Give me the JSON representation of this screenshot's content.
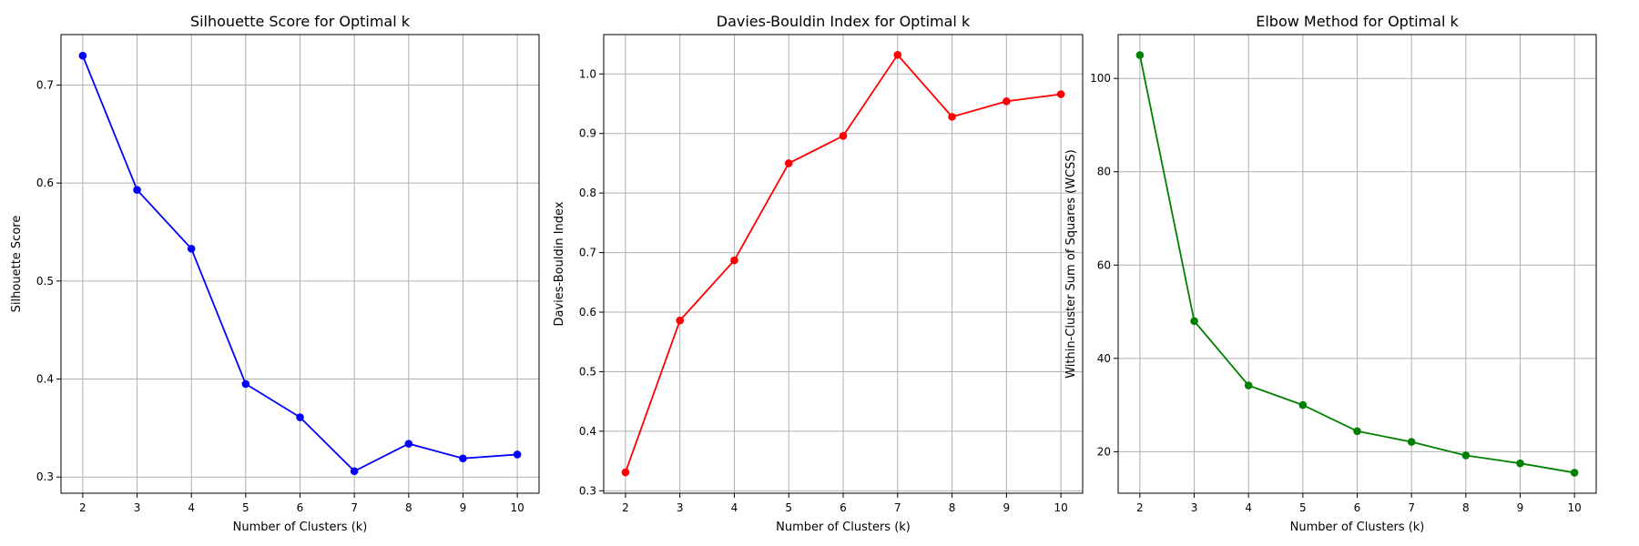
{
  "chart_data": [
    {
      "type": "line",
      "title": "Silhouette Score for Optimal k",
      "xlabel": "Number of Clusters (k)",
      "ylabel": "Silhouette Score",
      "x": [
        2,
        3,
        4,
        5,
        6,
        7,
        8,
        9,
        10
      ],
      "series": [
        {
          "values": [
            0.73,
            0.593,
            0.533,
            0.395,
            0.361,
            0.306,
            0.334,
            0.319,
            0.323
          ]
        }
      ],
      "xticks": [
        2,
        3,
        4,
        5,
        6,
        7,
        8,
        9,
        10
      ],
      "yticks": [
        0.3,
        0.4,
        0.5,
        0.6,
        0.7
      ],
      "ytick_labels": [
        "0.3",
        "0.4",
        "0.5",
        "0.6",
        "0.7"
      ],
      "xlim": [
        1.6,
        10.4
      ],
      "ylim": [
        0.2835,
        0.7515
      ],
      "color": "#0000ff",
      "marker": "circle",
      "grid": true
    },
    {
      "type": "line",
      "title": "Davies-Bouldin Index for Optimal k",
      "xlabel": "Number of Clusters (k)",
      "ylabel": "Davies-Bouldin Index",
      "x": [
        2,
        3,
        4,
        5,
        6,
        7,
        8,
        9,
        10
      ],
      "series": [
        {
          "values": [
            0.331,
            0.586,
            0.687,
            0.85,
            0.896,
            1.032,
            0.928,
            0.954,
            0.966
          ]
        }
      ],
      "xticks": [
        2,
        3,
        4,
        5,
        6,
        7,
        8,
        9,
        10
      ],
      "yticks": [
        0.3,
        0.4,
        0.5,
        0.6,
        0.7,
        0.8,
        0.9,
        1.0
      ],
      "ytick_labels": [
        "0.3",
        "0.4",
        "0.5",
        "0.6",
        "0.7",
        "0.8",
        "0.9",
        "1.0"
      ],
      "xlim": [
        1.6,
        10.4
      ],
      "ylim": [
        0.2959,
        1.0661
      ],
      "color": "#ff0000",
      "marker": "circle",
      "grid": true
    },
    {
      "type": "line",
      "title": "Elbow Method for Optimal k",
      "xlabel": "Number of Clusters (k)",
      "ylabel": "Within-Cluster Sum of Squares (WCSS)",
      "x": [
        2,
        3,
        4,
        5,
        6,
        7,
        8,
        9,
        10
      ],
      "series": [
        {
          "values": [
            105.0,
            48.0,
            34.2,
            30.0,
            24.4,
            22.1,
            19.2,
            17.5,
            15.5
          ]
        }
      ],
      "xticks": [
        2,
        3,
        4,
        5,
        6,
        7,
        8,
        9,
        10
      ],
      "yticks": [
        20,
        40,
        60,
        80,
        100
      ],
      "ytick_labels": [
        "20",
        "40",
        "60",
        "80",
        "100"
      ],
      "xlim": [
        1.6,
        10.4
      ],
      "ylim": [
        11.1,
        109.4
      ],
      "color": "#008000",
      "marker": "circle",
      "grid": true
    }
  ]
}
